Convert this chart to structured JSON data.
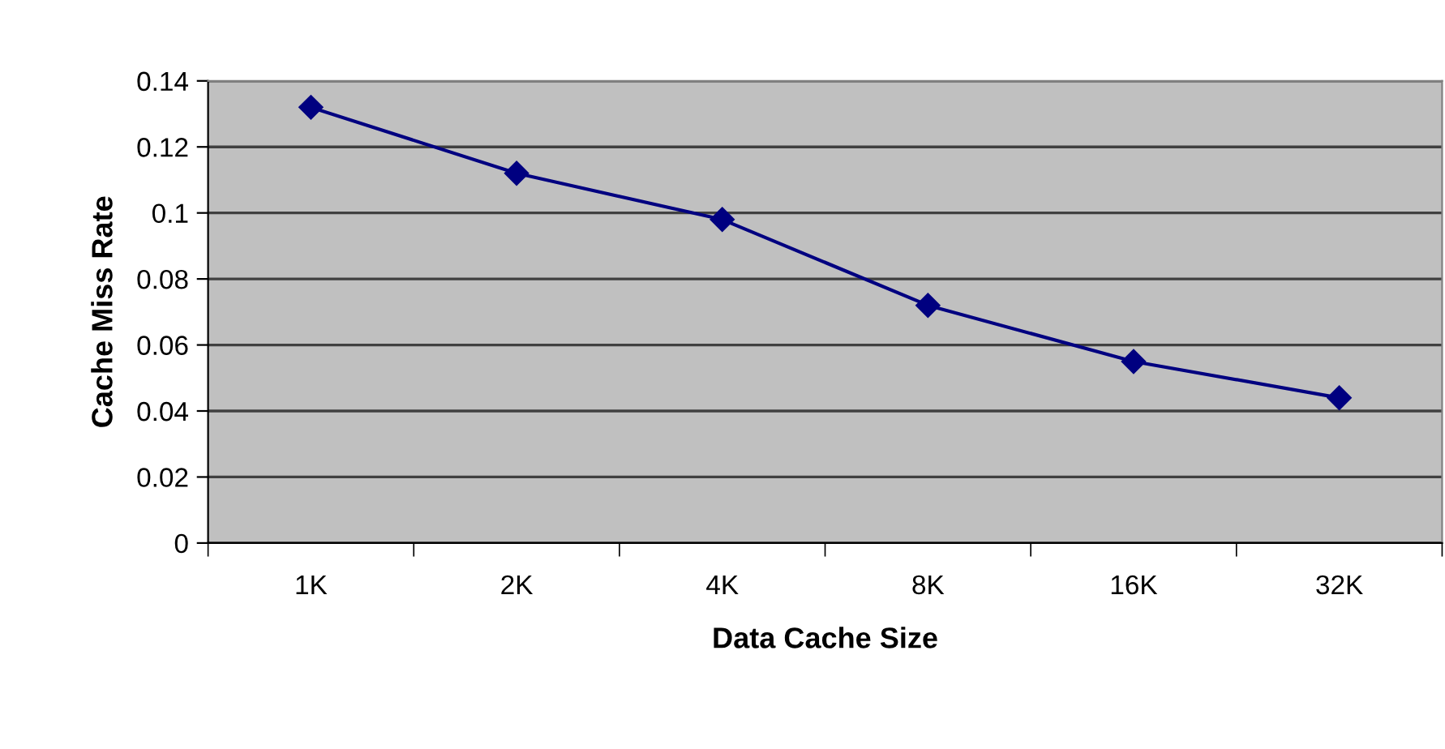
{
  "chart_data": {
    "type": "line",
    "xlabel": "Data Cache Size",
    "ylabel": "Cache Miss Rate",
    "categories": [
      "1K",
      "2K",
      "4K",
      "8K",
      "16K",
      "32K"
    ],
    "series": [
      {
        "color": "#000080",
        "values": [
          0.132,
          0.112,
          0.098,
          0.072,
          0.055,
          0.044
        ]
      }
    ],
    "ylim": [
      0,
      0.14
    ],
    "yticks": [
      0,
      0.02,
      0.04,
      0.06,
      0.08,
      0.1,
      0.12,
      0.14
    ],
    "grid": "y",
    "marker": "diamond",
    "line_style": "solid"
  }
}
